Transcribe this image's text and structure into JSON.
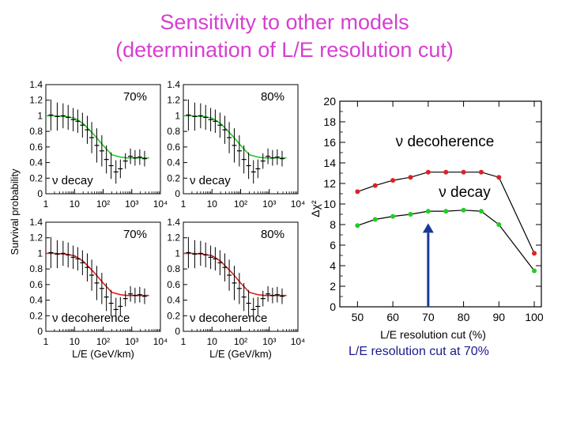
{
  "title_line1": "Sensitivity to other models",
  "title_line2": "(determination of L/E  resolution cut)",
  "caption": "L/E resolution cut at 70%",
  "colors": {
    "title": "#d63fd0",
    "decay": "#22cc22",
    "decoherence": "#dd2222",
    "arrow": "#1a3a9a",
    "caption": "#1a1a8c"
  },
  "chart_data": [
    {
      "type": "line",
      "title": "",
      "ylabel": "Survival probability",
      "xlabel": "L/E (GeV/km)",
      "xscale": "log",
      "xlim": [
        1,
        10000
      ],
      "ylim": [
        0,
        1.4
      ],
      "yticks": [
        "0",
        "0.2",
        "0.4",
        "0.6",
        "0.8",
        "1",
        "1.2",
        "1.4"
      ],
      "xticks": [
        "1",
        "10",
        "10²",
        "10³",
        "10⁴"
      ],
      "panels": [
        {
          "cut_label": "70%",
          "model_label": "ν decay",
          "model": "decay"
        },
        {
          "cut_label": "80%",
          "model_label": "ν decay",
          "model": "decay"
        },
        {
          "cut_label": "70%",
          "model_label": "ν decoherence",
          "model": "decoherence"
        },
        {
          "cut_label": "80%",
          "model_label": "ν decoherence",
          "model": "decoherence"
        }
      ],
      "data_x": [
        1.5,
        2.5,
        4,
        6,
        9,
        13,
        19,
        28,
        40,
        60,
        90,
        130,
        190,
        280,
        400,
        600,
        900,
        1300,
        1900,
        2800
      ],
      "data_y": [
        1.01,
        0.99,
        1.0,
        0.98,
        0.95,
        0.93,
        0.88,
        0.82,
        0.72,
        0.62,
        0.55,
        0.44,
        0.36,
        0.28,
        0.32,
        0.42,
        0.48,
        0.46,
        0.47,
        0.45
      ],
      "data_err": [
        0.2,
        0.18,
        0.16,
        0.16,
        0.15,
        0.15,
        0.16,
        0.18,
        0.2,
        0.22,
        0.2,
        0.18,
        0.17,
        0.15,
        0.12,
        0.1,
        0.1,
        0.1,
        0.1,
        0.1
      ],
      "model_curve_x": [
        1,
        2,
        5,
        10,
        20,
        50,
        100,
        200,
        400,
        700,
        1000,
        2000,
        4000
      ],
      "model_curve_y": [
        1.0,
        1.0,
        0.99,
        0.97,
        0.9,
        0.75,
        0.62,
        0.5,
        0.47,
        0.46,
        0.46,
        0.46,
        0.46
      ]
    },
    {
      "type": "line",
      "xlabel": "L/E resolution cut (%)",
      "ylabel": "Δχ²",
      "xlim": [
        45,
        102
      ],
      "ylim": [
        0,
        20
      ],
      "xticks": [
        "50",
        "60",
        "70",
        "80",
        "90",
        "100"
      ],
      "yticks": [
        "0",
        "2",
        "4",
        "6",
        "8",
        "10",
        "12",
        "14",
        "16",
        "18",
        "20"
      ],
      "x": [
        50,
        55,
        60,
        65,
        70,
        75,
        80,
        85,
        90,
        100
      ],
      "series": [
        {
          "name": "ν decoherence",
          "color": "#dd2222",
          "values": [
            11.2,
            11.8,
            12.3,
            12.6,
            13.1,
            13.1,
            13.1,
            13.1,
            12.6,
            5.2
          ]
        },
        {
          "name": "ν decay",
          "color": "#22cc22",
          "values": [
            7.9,
            8.5,
            8.8,
            9.0,
            9.3,
            9.3,
            9.4,
            9.3,
            8.0,
            3.5
          ]
        }
      ],
      "annotation": "arrow at 70%"
    }
  ]
}
